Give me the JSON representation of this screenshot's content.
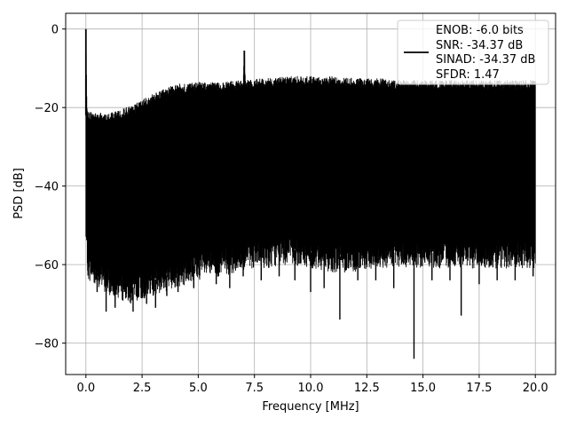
{
  "chart_data": {
    "type": "line",
    "title": "",
    "xlabel": "Frequency [MHz]",
    "ylabel": "PSD [dB]",
    "xlim": [
      -0.9,
      20.9
    ],
    "ylim": [
      -88,
      4
    ],
    "xticks": [
      0.0,
      2.5,
      5.0,
      7.5,
      10.0,
      12.5,
      15.0,
      17.5,
      20.0
    ],
    "xtick_labels": [
      "0.0",
      "2.5",
      "5.0",
      "7.5",
      "10.0",
      "12.5",
      "15.0",
      "17.5",
      "20.0"
    ],
    "yticks": [
      0,
      -20,
      -40,
      -60,
      -80
    ],
    "ytick_labels": [
      "0",
      "−20",
      "−40",
      "−60",
      "−80"
    ],
    "grid": true,
    "legend_position": "top-right",
    "legend_lines": [
      "ENOB: -6.0 bits",
      "SNR: -34.37 dB",
      "SINAD: -34.37 dB",
      "SFDR: 1.47"
    ],
    "color": "#000000",
    "series": [
      {
        "x": [
          0.0,
          0.05,
          0.1,
          1.0,
          2.0,
          3.0,
          4.0,
          5.0,
          6.0,
          7.0,
          7.05,
          7.1,
          8.0,
          9.0,
          10.0,
          11.0,
          12.0,
          13.0,
          14.0,
          15.0,
          16.0,
          17.0,
          18.0,
          19.0,
          20.0
        ],
        "upper": [
          0,
          -20,
          -21,
          -21.5,
          -19.5,
          -16.5,
          -14,
          -13.5,
          -13.5,
          -13,
          -5.5,
          -13,
          -12.5,
          -12,
          -12,
          -12,
          -12.5,
          -12.5,
          -13,
          -13,
          -13,
          -13,
          -13,
          -13,
          -13
        ],
        "lower": [
          -55,
          -60,
          -64,
          -68,
          -70,
          -68,
          -66,
          -64,
          -63,
          -62,
          -62,
          -61,
          -61,
          -60,
          -61,
          -62,
          -62,
          -61,
          -61,
          -61,
          -61,
          -61,
          -61,
          -61,
          -61
        ],
        "dips": [
          [
            0.5,
            -67
          ],
          [
            0.9,
            -72
          ],
          [
            1.3,
            -71
          ],
          [
            1.7,
            -65
          ],
          [
            2.1,
            -72
          ],
          [
            2.7,
            -70
          ],
          [
            3.1,
            -71
          ],
          [
            3.6,
            -68
          ],
          [
            4.1,
            -67
          ],
          [
            4.8,
            -66
          ],
          [
            5.8,
            -65
          ],
          [
            6.4,
            -66
          ],
          [
            7.0,
            -63
          ],
          [
            7.8,
            -64
          ],
          [
            8.6,
            -63
          ],
          [
            9.3,
            -64
          ],
          [
            10.0,
            -67
          ],
          [
            10.6,
            -66
          ],
          [
            11.3,
            -74
          ],
          [
            12.1,
            -64
          ],
          [
            12.9,
            -64
          ],
          [
            13.7,
            -66
          ],
          [
            14.6,
            -84
          ],
          [
            15.4,
            -64
          ],
          [
            16.2,
            -64
          ],
          [
            16.7,
            -73
          ],
          [
            17.5,
            -65
          ],
          [
            18.3,
            -64
          ],
          [
            19.1,
            -64
          ],
          [
            19.9,
            -63
          ]
        ]
      }
    ]
  }
}
